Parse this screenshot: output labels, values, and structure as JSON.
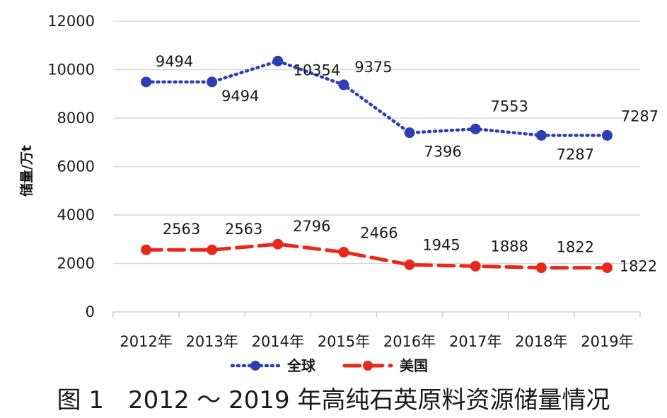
{
  "caption": "图 1　2012 ～ 2019 年高纯石英原料资源储量情况",
  "chart_data": {
    "type": "line",
    "title": "",
    "xlabel": "",
    "ylabel": "储量/万t",
    "categories": [
      "2012年",
      "2013年",
      "2014年",
      "2015年",
      "2016年",
      "2017年",
      "2018年",
      "2019年"
    ],
    "ylim": [
      0,
      12000
    ],
    "yticks": [
      0,
      2000,
      4000,
      6000,
      8000,
      10000,
      12000
    ],
    "grid": true,
    "legend_position": "bottom",
    "series": [
      {
        "name": "全球",
        "color": "#2e3fb5",
        "style": "dotted",
        "values": [
          9494,
          9494,
          10354,
          9375,
          7396,
          7553,
          7287,
          7287
        ],
        "labels": [
          "9494",
          "9494",
          "10354",
          "9375",
          "7396",
          "7553",
          "7287",
          "7287"
        ]
      },
      {
        "name": "美国",
        "color": "#e8281c",
        "style": "dashed",
        "values": [
          2563,
          2563,
          2796,
          2466,
          1945,
          1888,
          1822,
          1822
        ],
        "labels": [
          "2563",
          "2563",
          "2796",
          "2466",
          "1945",
          "1888",
          "1822",
          "1822"
        ]
      }
    ]
  }
}
